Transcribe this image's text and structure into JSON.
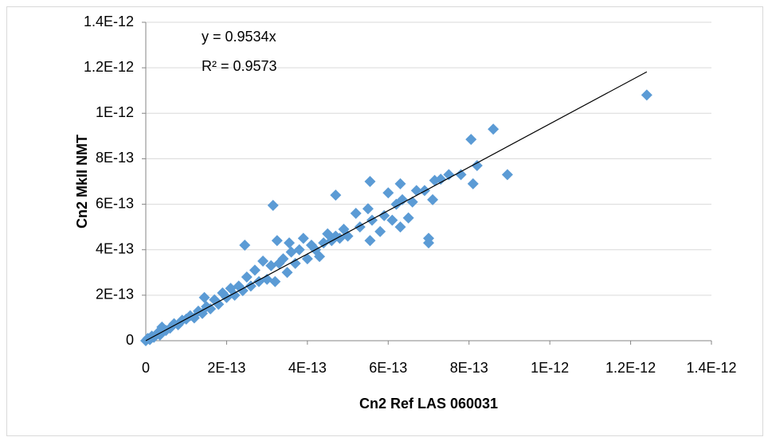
{
  "chart_data": {
    "type": "scatter",
    "x_label": "Cn2 Ref LAS 060031",
    "y_label": "Cn2 MkII NMT",
    "annotations": [
      "y = 0.9534x",
      "R² = 0.9573"
    ],
    "trendline": {
      "slope": 0.9534,
      "color": "#000000"
    },
    "x": [
      0,
      5e-15,
      1e-14,
      1.5e-14,
      2e-14,
      3e-14,
      3.5e-14,
      4e-14,
      5e-14,
      6e-14,
      7e-14,
      8e-14,
      9e-14,
      1e-13,
      1.1e-13,
      1.2e-13,
      1.3e-13,
      1.4e-13,
      1.45e-13,
      1.5e-13,
      1.6e-13,
      1.7e-13,
      1.8e-13,
      1.9e-13,
      2e-13,
      2.1e-13,
      2.2e-13,
      2.3e-13,
      2.4e-13,
      2.45e-13,
      2.5e-13,
      2.6e-13,
      2.7e-13,
      2.8e-13,
      2.9e-13,
      3e-13,
      3.1e-13,
      3.15e-13,
      3.2e-13,
      3.25e-13,
      3.3e-13,
      3.4e-13,
      3.5e-13,
      3.55e-13,
      3.6e-13,
      3.7e-13,
      3.8e-13,
      3.9e-13,
      4e-13,
      4.1e-13,
      4.2e-13,
      4.3e-13,
      4.4e-13,
      4.5e-13,
      4.6e-13,
      4.7e-13,
      4.7e-13,
      4.8e-13,
      4.9e-13,
      5e-13,
      5.2e-13,
      5.3e-13,
      5.5e-13,
      5.55e-13,
      5.55e-13,
      5.6e-13,
      5.8e-13,
      5.9e-13,
      6e-13,
      6.1e-13,
      6.2e-13,
      6.3e-13,
      6.3e-13,
      6.35e-13,
      6.5e-13,
      6.6e-13,
      6.7e-13,
      6.9e-13,
      7e-13,
      7e-13,
      7.1e-13,
      7.15e-13,
      7.3e-13,
      7.5e-13,
      7.8e-13,
      8.05e-13,
      8.1e-13,
      8.2e-13,
      8.6e-13,
      8.95e-13,
      1.24e-12
    ],
    "series": [
      {
        "color": "#5b9bd5",
        "values": [
          0,
          1e-14,
          5e-15,
          2e-14,
          1.5e-14,
          3.5e-14,
          2.5e-14,
          6e-14,
          4.5e-14,
          5.5e-14,
          7.5e-14,
          7e-14,
          9e-14,
          9.5e-14,
          1.1e-13,
          1e-13,
          1.3e-13,
          1.2e-13,
          1.9e-13,
          1.5e-13,
          1.4e-13,
          1.8e-13,
          1.6e-13,
          2.1e-13,
          1.9e-13,
          2.3e-13,
          2e-13,
          2.4e-13,
          2.2e-13,
          4.2e-13,
          2.8e-13,
          2.4e-13,
          3.1e-13,
          2.6e-13,
          3.5e-13,
          2.7e-13,
          3.3e-13,
          5.95e-13,
          2.6e-13,
          4.4e-13,
          3.4e-13,
          3.6e-13,
          3e-13,
          4.3e-13,
          3.9e-13,
          3.4e-13,
          4e-13,
          4.5e-13,
          3.6e-13,
          4.2e-13,
          4e-13,
          3.7e-13,
          4.3e-13,
          4.7e-13,
          4.4e-13,
          4.6e-13,
          6.4e-13,
          4.5e-13,
          4.9e-13,
          4.6e-13,
          5.6e-13,
          5e-13,
          5.8e-13,
          7e-13,
          4.4e-13,
          5.3e-13,
          4.8e-13,
          5.5e-13,
          6.5e-13,
          5.3e-13,
          6e-13,
          5e-13,
          6.9e-13,
          6.2e-13,
          5.4e-13,
          6.1e-13,
          6.6e-13,
          6.6e-13,
          4.5e-13,
          4.3e-13,
          6.2e-13,
          7.05e-13,
          7.1e-13,
          7.3e-13,
          7.3e-13,
          8.85e-13,
          6.9e-13,
          7.7e-13,
          9.3e-13,
          7.3e-13,
          1.08e-12
        ]
      }
    ],
    "xlim": [
      0,
      1.4e-12
    ],
    "ylim": [
      0,
      1.4e-12
    ],
    "xticks": [
      0,
      {
        "value": 2e-13,
        "label": "2E-13"
      },
      {
        "value": 4e-13,
        "label": "4E-13"
      },
      {
        "value": 6e-13,
        "label": "6E-13"
      },
      {
        "value": 8e-13,
        "label": "8E-13"
      },
      {
        "value": 1e-12,
        "label": "1E-12"
      },
      {
        "value": 1.2e-12,
        "label": "1.2E-12"
      },
      {
        "value": 1.4e-12,
        "label": "1.4E-12"
      }
    ],
    "yticks": [
      0,
      {
        "value": 2e-13,
        "label": "2E-13"
      },
      {
        "value": 4e-13,
        "label": "4E-13"
      },
      {
        "value": 6e-13,
        "label": "6E-13"
      },
      {
        "value": 8e-13,
        "label": "8E-13"
      },
      {
        "value": 1e-12,
        "label": "1E-12"
      },
      {
        "value": 1.2e-12,
        "label": "1.2E-12"
      },
      {
        "value": 1.4e-12,
        "label": "1.4E-12"
      }
    ],
    "grid": true
  }
}
